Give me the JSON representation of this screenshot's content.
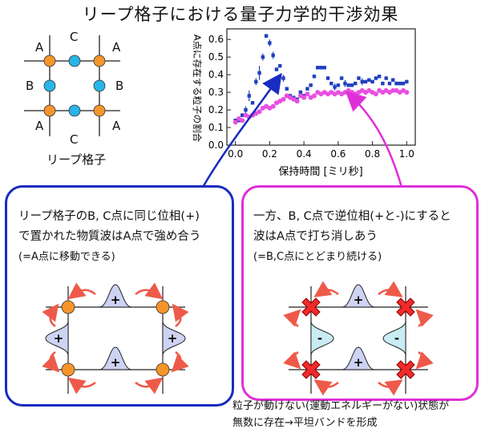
{
  "title": "リープ格子における量子力学的干渉効果",
  "lattice": {
    "caption": "リープ格子",
    "labels": {
      "A": "A",
      "B": "B",
      "C": "C"
    },
    "colors": {
      "a_site": "#f5952a",
      "bc_site": "#29b5e8",
      "line": "#222222"
    }
  },
  "chart_data": {
    "type": "scatter",
    "xlabel": "保持時間 [ミリ秒]",
    "ylabel": "A点に存在する粒子の割合",
    "xlim": [
      -0.05,
      1.05
    ],
    "ylim": [
      0,
      0.66
    ],
    "xticks": [
      0.0,
      0.2,
      0.4,
      0.6,
      0.8,
      1.0
    ],
    "yticks": [
      0.0,
      0.1,
      0.2,
      0.3,
      0.4,
      0.5,
      0.6
    ],
    "xtick_labels": [
      "0.0",
      "0.2",
      "0.4",
      "0.6",
      "0.8",
      "1.0"
    ],
    "ytick_labels": [
      "0.0",
      "0.1",
      "0.2",
      "0.3",
      "0.4",
      "0.5",
      "0.6"
    ],
    "series": [
      {
        "color": "#1f3fbf",
        "points": [
          [
            0.0,
            0.14,
            0.01
          ],
          [
            0.02,
            0.14,
            0.01
          ],
          [
            0.04,
            0.17,
            0.01
          ],
          [
            0.06,
            0.2,
            0.02
          ],
          [
            0.08,
            0.28,
            0.03
          ],
          [
            0.1,
            0.24,
            0.01
          ],
          [
            0.12,
            0.36,
            0.02
          ],
          [
            0.14,
            0.41,
            0.04
          ],
          [
            0.16,
            0.5,
            0.02
          ],
          [
            0.18,
            0.62,
            0.01
          ],
          [
            0.2,
            0.58,
            0.02
          ],
          [
            0.22,
            0.51,
            0.02
          ],
          [
            0.24,
            0.43,
            0.01
          ],
          [
            0.26,
            0.45,
            0.01
          ],
          [
            0.28,
            0.38,
            0.02
          ],
          [
            0.3,
            0.32,
            0.01
          ],
          [
            0.32,
            0.28,
            0.01
          ],
          [
            0.34,
            0.27,
            0.01
          ],
          [
            0.36,
            0.26,
            0.01
          ],
          [
            0.38,
            0.3,
            0.01
          ],
          [
            0.4,
            0.28,
            0.01
          ],
          [
            0.42,
            0.32,
            0.01
          ],
          [
            0.44,
            0.34,
            0.01
          ],
          [
            0.46,
            0.39,
            0.01
          ],
          [
            0.48,
            0.44,
            0.01
          ],
          [
            0.5,
            0.44,
            0.01
          ],
          [
            0.52,
            0.44,
            0.01
          ],
          [
            0.54,
            0.38,
            0.01
          ],
          [
            0.56,
            0.35,
            0.01
          ],
          [
            0.58,
            0.33,
            0.02
          ],
          [
            0.6,
            0.34,
            0.01
          ],
          [
            0.62,
            0.38,
            0.01
          ],
          [
            0.64,
            0.35,
            0.02
          ],
          [
            0.66,
            0.34,
            0.01
          ],
          [
            0.68,
            0.34,
            0.01
          ],
          [
            0.7,
            0.35,
            0.01
          ],
          [
            0.72,
            0.38,
            0.01
          ],
          [
            0.74,
            0.36,
            0.02
          ],
          [
            0.76,
            0.36,
            0.01
          ],
          [
            0.78,
            0.37,
            0.01
          ],
          [
            0.8,
            0.36,
            0.01
          ],
          [
            0.82,
            0.38,
            0.01
          ],
          [
            0.84,
            0.39,
            0.01
          ],
          [
            0.86,
            0.35,
            0.01
          ],
          [
            0.88,
            0.38,
            0.01
          ],
          [
            0.9,
            0.35,
            0.01
          ],
          [
            0.92,
            0.37,
            0.01
          ],
          [
            0.94,
            0.35,
            0.01
          ],
          [
            0.96,
            0.35,
            0.01
          ],
          [
            0.98,
            0.35,
            0.01
          ],
          [
            1.0,
            0.36,
            0.01
          ]
        ]
      },
      {
        "color": "#e84fe0",
        "points": [
          [
            0.0,
            0.13
          ],
          [
            0.02,
            0.15
          ],
          [
            0.04,
            0.14
          ],
          [
            0.06,
            0.17
          ],
          [
            0.08,
            0.16
          ],
          [
            0.1,
            0.17
          ],
          [
            0.12,
            0.18
          ],
          [
            0.14,
            0.19
          ],
          [
            0.16,
            0.21
          ],
          [
            0.18,
            0.22
          ],
          [
            0.2,
            0.21
          ],
          [
            0.22,
            0.22
          ],
          [
            0.24,
            0.24
          ],
          [
            0.26,
            0.25
          ],
          [
            0.28,
            0.26
          ],
          [
            0.3,
            0.28
          ],
          [
            0.32,
            0.27
          ],
          [
            0.34,
            0.26
          ],
          [
            0.36,
            0.25
          ],
          [
            0.38,
            0.28
          ],
          [
            0.4,
            0.27
          ],
          [
            0.42,
            0.29
          ],
          [
            0.44,
            0.27
          ],
          [
            0.46,
            0.28
          ],
          [
            0.48,
            0.3
          ],
          [
            0.5,
            0.29
          ],
          [
            0.52,
            0.3
          ],
          [
            0.54,
            0.29
          ],
          [
            0.56,
            0.3
          ],
          [
            0.58,
            0.29
          ],
          [
            0.6,
            0.3
          ],
          [
            0.62,
            0.29
          ],
          [
            0.64,
            0.3
          ],
          [
            0.66,
            0.31
          ],
          [
            0.68,
            0.3
          ],
          [
            0.7,
            0.29
          ],
          [
            0.72,
            0.3
          ],
          [
            0.74,
            0.31
          ],
          [
            0.76,
            0.3
          ],
          [
            0.78,
            0.31
          ],
          [
            0.8,
            0.3
          ],
          [
            0.82,
            0.29
          ],
          [
            0.84,
            0.31
          ],
          [
            0.86,
            0.3
          ],
          [
            0.88,
            0.31
          ],
          [
            0.9,
            0.3
          ],
          [
            0.92,
            0.31
          ],
          [
            0.94,
            0.31
          ],
          [
            0.96,
            0.3
          ],
          [
            0.98,
            0.31
          ],
          [
            1.0,
            0.3
          ]
        ]
      }
    ]
  },
  "panel_left": {
    "line1": "リープ格子のB, C点に同じ位相(+)",
    "line2": "で置かれた物質波はA点で強め合う",
    "line3": "(=A点に移動できる)",
    "border_color": "#1a2bbf",
    "signs": [
      "+",
      "+",
      "+",
      "+"
    ]
  },
  "panel_right": {
    "line1": "一方、B, C点で逆位相(+と-)にすると",
    "line2": "波はA点で打ち消しあう",
    "line3": "(=B,C点にとどまり続ける)",
    "border_color": "#e02fd8",
    "signs": [
      "+",
      "-",
      "-",
      "+"
    ]
  },
  "footnote": {
    "line1": "粒子が動けない(運動エネルギーがない)状態が",
    "line2": "無数に存在→平坦バンドを形成"
  }
}
